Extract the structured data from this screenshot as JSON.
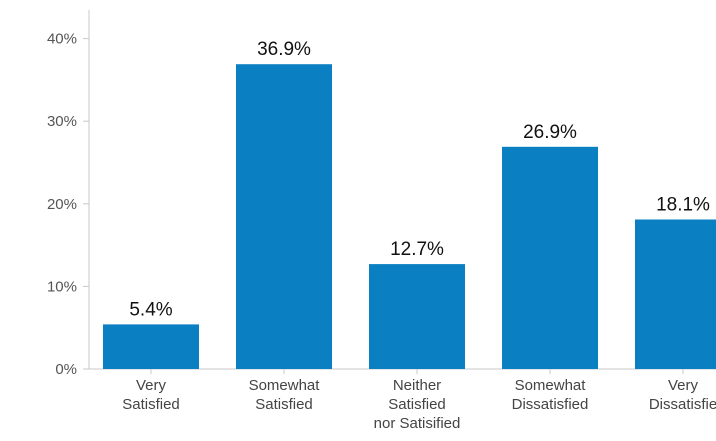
{
  "chart_data": {
    "type": "bar",
    "categories": [
      [
        "Very",
        "Satisfied"
      ],
      [
        "Somewhat",
        "Satisfied"
      ],
      [
        "Neither",
        "Satisfied",
        "nor Satisified"
      ],
      [
        "Somewhat",
        "Dissatisfied"
      ],
      [
        "Very",
        "Dissatisfie"
      ]
    ],
    "values": [
      5.4,
      36.9,
      12.7,
      26.9,
      18.1
    ],
    "data_labels": [
      "5.4%",
      "36.9%",
      "12.7%",
      "26.9%",
      "18.1%"
    ],
    "yticks": [
      {
        "value": 0,
        "label": "0%"
      },
      {
        "value": 10,
        "label": "10%"
      },
      {
        "value": 20,
        "label": "20%"
      },
      {
        "value": 30,
        "label": "30%"
      },
      {
        "value": 40,
        "label": "40%"
      }
    ],
    "ylim": [
      0,
      43
    ],
    "title": "",
    "xlabel": "",
    "ylabel": "",
    "grid": false,
    "legend": "none",
    "bar_color": "#0a7fc2",
    "axis_color": "#c8c8c8"
  }
}
